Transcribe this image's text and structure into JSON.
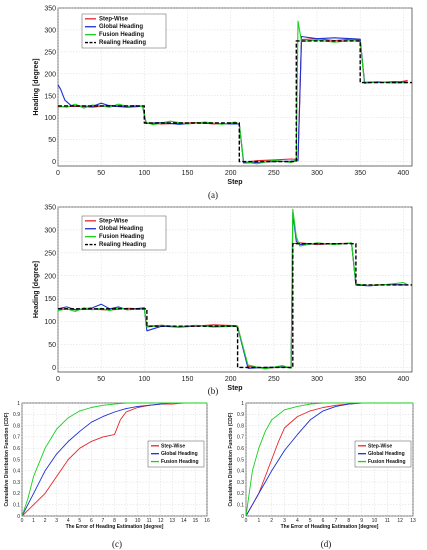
{
  "colors": {
    "step_wise": "#e8242a",
    "global": "#1c2fd6",
    "fusion": "#17d21c",
    "realing": "#000000"
  },
  "chart_data": [
    {
      "type": "line",
      "caption": "(a)",
      "xlabel": "Step",
      "ylabel": "Heading [degree]",
      "xlim": [
        0,
        410
      ],
      "ylim": [
        -10,
        350
      ],
      "xticks": [
        0,
        50,
        100,
        150,
        200,
        250,
        300,
        350,
        400
      ],
      "yticks": [
        0,
        50,
        100,
        150,
        200,
        250,
        300,
        350
      ],
      "legend_position": "top-left",
      "series": [
        {
          "name": "Step-Wise",
          "color": "#e8242a",
          "x": [
            0,
            20,
            40,
            60,
            80,
            98,
            102,
            120,
            140,
            160,
            180,
            200,
            210,
            215,
            230,
            250,
            270,
            278,
            282,
            300,
            320,
            340,
            350,
            355,
            370,
            390,
            405
          ],
          "y": [
            125,
            126,
            124,
            128,
            126,
            127,
            88,
            86,
            87,
            89,
            86,
            87,
            86,
            -2,
            2,
            4,
            6,
            5,
            278,
            280,
            276,
            279,
            277,
            180,
            182,
            179,
            185
          ]
        },
        {
          "name": "Global Heading",
          "color": "#1c2fd6",
          "x": [
            0,
            3,
            8,
            15,
            20,
            40,
            50,
            60,
            80,
            98,
            102,
            120,
            140,
            160,
            180,
            200,
            210,
            215,
            230,
            250,
            270,
            278,
            282,
            300,
            320,
            340,
            350,
            355,
            370,
            390,
            405
          ],
          "y": [
            175,
            165,
            140,
            128,
            127,
            126,
            133,
            127,
            124,
            126,
            87,
            89,
            85,
            88,
            87,
            86,
            86,
            -3,
            -2,
            0,
            1,
            2,
            285,
            280,
            282,
            280,
            279,
            181,
            180,
            182,
            181
          ]
        },
        {
          "name": "Fusion Heading",
          "color": "#17d21c",
          "x": [
            0,
            10,
            20,
            30,
            40,
            50,
            60,
            70,
            80,
            90,
            98,
            102,
            110,
            130,
            150,
            170,
            190,
            205,
            210,
            215,
            230,
            250,
            270,
            276,
            278,
            282,
            300,
            320,
            340,
            350,
            355,
            370,
            390,
            405
          ],
          "y": [
            127,
            124,
            131,
            122,
            129,
            127,
            124,
            131,
            126,
            128,
            125,
            90,
            84,
            92,
            86,
            90,
            85,
            90,
            86,
            0,
            -5,
            3,
            -2,
            5,
            320,
            274,
            277,
            272,
            276,
            274,
            178,
            182,
            179,
            180
          ]
        },
        {
          "name": "Realing Heading",
          "color": "#000000",
          "dashed": true,
          "x": [
            0,
            100,
            100,
            210,
            210,
            276,
            276,
            350,
            350,
            410
          ],
          "y": [
            127,
            127,
            88,
            88,
            0,
            0,
            275,
            275,
            180,
            180
          ]
        }
      ]
    },
    {
      "type": "line",
      "caption": "(b)",
      "xlabel": "Step",
      "ylabel": "Heading [degree]",
      "xlim": [
        0,
        410
      ],
      "ylim": [
        -10,
        350
      ],
      "xticks": [
        0,
        50,
        100,
        150,
        200,
        250,
        300,
        350,
        400
      ],
      "yticks": [
        0,
        50,
        100,
        150,
        200,
        250,
        300,
        350
      ],
      "legend_position": "top-left",
      "series": [
        {
          "name": "Step-Wise",
          "color": "#e8242a",
          "x": [
            0,
            20,
            40,
            60,
            80,
            100,
            103,
            120,
            140,
            160,
            180,
            205,
            208,
            220,
            240,
            260,
            270,
            272,
            280,
            300,
            320,
            340,
            345,
            360,
            380,
            405
          ],
          "y": [
            128,
            126,
            127,
            125,
            129,
            128,
            90,
            92,
            88,
            90,
            93,
            91,
            90,
            2,
            -2,
            1,
            0,
            270,
            272,
            268,
            270,
            271,
            180,
            179,
            181,
            180
          ]
        },
        {
          "name": "Global Heading",
          "color": "#1c2fd6",
          "x": [
            0,
            10,
            20,
            30,
            40,
            50,
            60,
            70,
            80,
            100,
            103,
            120,
            140,
            160,
            180,
            205,
            208,
            220,
            240,
            260,
            270,
            272,
            276,
            280,
            300,
            320,
            340,
            345,
            360,
            380,
            405
          ],
          "y": [
            128,
            132,
            126,
            128,
            130,
            138,
            128,
            132,
            126,
            130,
            80,
            90,
            88,
            91,
            89,
            90,
            88,
            -2,
            0,
            1,
            -1,
            338,
            275,
            268,
            270,
            269,
            271,
            180,
            178,
            181,
            180
          ]
        },
        {
          "name": "Fusion Heading",
          "color": "#17d21c",
          "x": [
            0,
            10,
            20,
            30,
            40,
            50,
            60,
            70,
            80,
            100,
            103,
            120,
            140,
            160,
            180,
            205,
            208,
            220,
            240,
            260,
            270,
            272,
            276,
            280,
            300,
            320,
            340,
            345,
            360,
            380,
            400,
            405
          ],
          "y": [
            124,
            128,
            122,
            130,
            126,
            129,
            124,
            130,
            126,
            127,
            88,
            92,
            89,
            92,
            88,
            90,
            89,
            5,
            -3,
            4,
            -2,
            345,
            285,
            265,
            272,
            268,
            272,
            182,
            179,
            181,
            185,
            180
          ]
        },
        {
          "name": "Realing Heading",
          "color": "#000000",
          "dashed": true,
          "x": [
            0,
            103,
            103,
            208,
            208,
            272,
            272,
            345,
            345,
            410
          ],
          "y": [
            128,
            128,
            90,
            90,
            0,
            0,
            270,
            270,
            180,
            180
          ]
        }
      ]
    },
    {
      "type": "line",
      "caption": "(c)",
      "xlabel": "The Error of Heading Estimation [degree]",
      "ylabel": "Cumulative Distribution Function (CDF)",
      "xlim": [
        0,
        16
      ],
      "ylim": [
        0,
        1
      ],
      "xticks": [
        0,
        1,
        2,
        3,
        4,
        5,
        6,
        7,
        8,
        9,
        10,
        11,
        12,
        13,
        14,
        15,
        16
      ],
      "yticks": [
        0,
        0.1,
        0.2,
        0.3,
        0.4,
        0.5,
        0.6,
        0.7,
        0.8,
        0.9,
        1
      ],
      "legend_position": "right",
      "series": [
        {
          "name": "Step-Wise",
          "color": "#e8242a",
          "x": [
            0,
            0.5,
            1,
            2,
            3,
            4,
            5,
            6,
            7,
            8,
            8.5,
            9,
            10,
            11,
            12,
            13,
            14,
            15,
            16
          ],
          "y": [
            0,
            0.05,
            0.1,
            0.2,
            0.35,
            0.5,
            0.6,
            0.66,
            0.7,
            0.72,
            0.85,
            0.92,
            0.96,
            0.98,
            0.99,
            0.99,
            1,
            1,
            1
          ]
        },
        {
          "name": "Global Heading",
          "color": "#1c2fd6",
          "x": [
            0,
            0.5,
            1,
            2,
            3,
            4,
            5,
            6,
            7,
            8,
            9,
            10,
            11,
            12,
            13,
            14,
            15,
            16
          ],
          "y": [
            0,
            0.1,
            0.2,
            0.4,
            0.55,
            0.66,
            0.75,
            0.83,
            0.88,
            0.92,
            0.95,
            0.97,
            0.98,
            0.99,
            1,
            1,
            1,
            1
          ]
        },
        {
          "name": "Fusion Heading",
          "color": "#17d21c",
          "x": [
            0,
            0.5,
            1,
            2,
            3,
            4,
            5,
            6,
            7,
            8,
            9,
            10,
            11,
            12,
            13,
            14,
            15,
            16
          ],
          "y": [
            0,
            0.15,
            0.35,
            0.6,
            0.77,
            0.87,
            0.93,
            0.96,
            0.98,
            0.99,
            1,
            1,
            1,
            1,
            1,
            1,
            1,
            1
          ]
        }
      ]
    },
    {
      "type": "line",
      "caption": "(d)",
      "xlabel": "The Error of Heading Estimation [degree]",
      "ylabel": "Cumulative Distribution Function (CDF)",
      "xlim": [
        0,
        13
      ],
      "ylim": [
        0,
        1
      ],
      "xticks": [
        0,
        1,
        2,
        3,
        4,
        5,
        6,
        7,
        8,
        9,
        10,
        11,
        12,
        13
      ],
      "yticks": [
        0,
        0.1,
        0.2,
        0.3,
        0.4,
        0.5,
        0.6,
        0.7,
        0.8,
        0.9,
        1
      ],
      "legend_position": "right",
      "series": [
        {
          "name": "Step-Wise",
          "color": "#e8242a",
          "x": [
            0,
            0.5,
            1,
            1.5,
            2,
            2.5,
            3,
            4,
            5,
            6,
            7,
            8,
            9,
            10,
            11,
            12,
            13
          ],
          "y": [
            0,
            0.1,
            0.2,
            0.35,
            0.5,
            0.65,
            0.78,
            0.88,
            0.93,
            0.96,
            0.98,
            0.99,
            1,
            1,
            1,
            1,
            1
          ]
        },
        {
          "name": "Global Heading",
          "color": "#1c2fd6",
          "x": [
            0,
            0.5,
            1,
            1.5,
            2,
            3,
            4,
            5,
            6,
            7,
            8,
            9,
            10,
            11,
            12,
            13
          ],
          "y": [
            0,
            0.1,
            0.2,
            0.3,
            0.4,
            0.58,
            0.72,
            0.85,
            0.93,
            0.97,
            0.99,
            1,
            1,
            1,
            1,
            1
          ]
        },
        {
          "name": "Fusion Heading",
          "color": "#17d21c",
          "x": [
            0,
            0.5,
            1,
            1.5,
            2,
            3,
            4,
            5,
            6,
            7,
            8,
            9,
            10,
            11,
            12,
            13
          ],
          "y": [
            0,
            0.4,
            0.6,
            0.75,
            0.85,
            0.94,
            0.97,
            0.99,
            1,
            1,
            1,
            1,
            1,
            1,
            1,
            1
          ]
        }
      ]
    }
  ]
}
